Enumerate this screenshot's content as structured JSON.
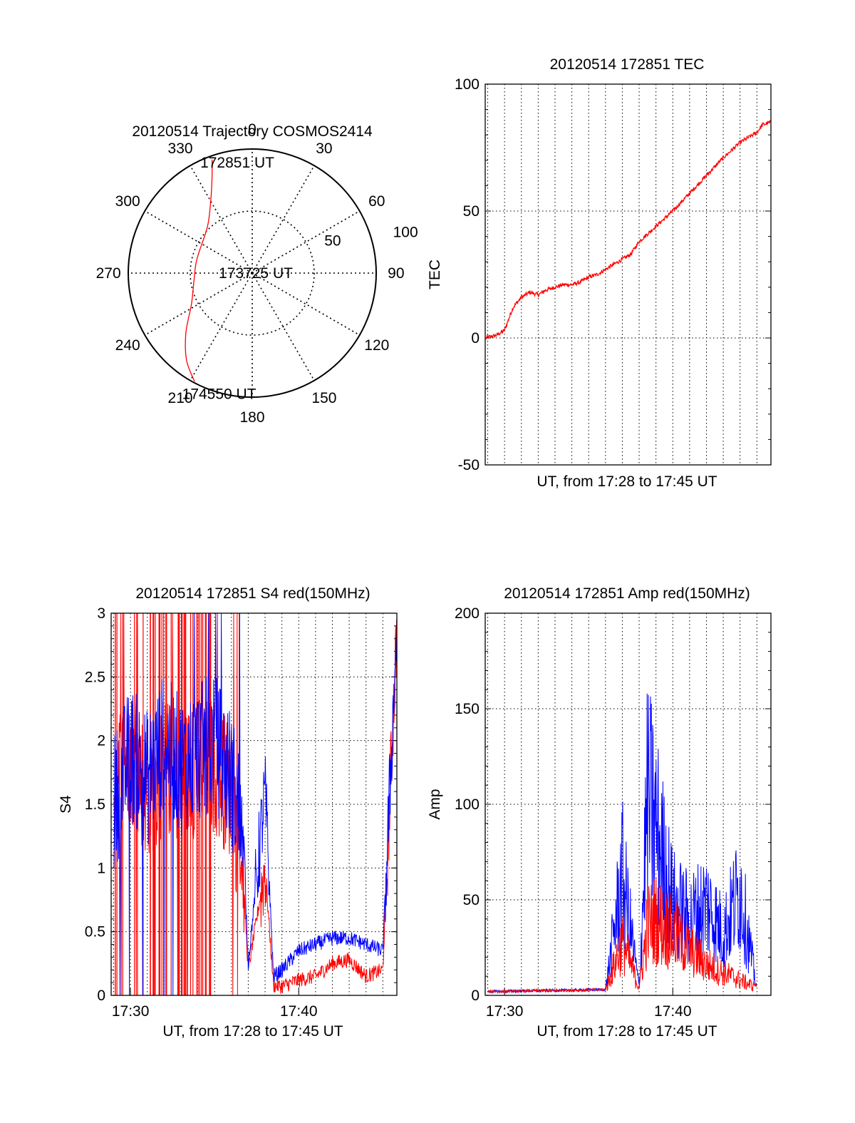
{
  "chart_data": [
    {
      "type": "polar-trajectory",
      "title": "20120514 Trajectory COSMOS2414",
      "azimuth_labels": [
        "0",
        "30",
        "60",
        "90",
        "120",
        "150",
        "180",
        "210",
        "240",
        "270",
        "300",
        "330"
      ],
      "azimuth_ticks": [
        0,
        30,
        60,
        90,
        120,
        150,
        180,
        210,
        240,
        270,
        300,
        330
      ],
      "ring_labels": [
        "50",
        "100"
      ],
      "rings": [
        50,
        100
      ],
      "trajectory": {
        "color": "#ff0000",
        "points": [
          [
            340.5,
            97
          ],
          [
            337,
            83
          ],
          [
            330,
            67
          ],
          [
            316,
            52
          ],
          [
            284,
            46
          ],
          [
            262,
            47.5
          ],
          [
            243,
            55
          ],
          [
            228,
            72
          ],
          [
            217,
            88
          ],
          [
            208,
            99
          ]
        ]
      },
      "point_labels": [
        {
          "text": "172851 UT",
          "az": 348,
          "r": 91
        },
        {
          "text": "173725 UT",
          "az": 271,
          "r": 4
        },
        {
          "text": "174550 UT",
          "az": 199,
          "r": 103
        }
      ]
    },
    {
      "type": "line",
      "title": "20120514 172851 TEC",
      "xlabel": "UT, from 17:28 to 17:45 UT",
      "ylabel": "TEC",
      "xlim": [
        "17:28:51",
        "17:45:50"
      ],
      "ylim": [
        -50,
        100
      ],
      "yticks": [
        -50,
        0,
        50,
        100
      ],
      "ytick_labels": [
        "-50",
        "0",
        "50",
        "100"
      ],
      "grid": true,
      "series": [
        {
          "color": "#ff0000",
          "x": [
            "17:28:51",
            "17:29:30",
            "17:30:00",
            "17:30:30",
            "17:31:00",
            "17:31:30",
            "17:32:00",
            "17:32:30",
            "17:33:00",
            "17:33:30",
            "17:34:00",
            "17:34:30",
            "17:35:00",
            "17:35:30",
            "17:36:00",
            "17:36:30",
            "17:37:00",
            "17:37:30",
            "17:38:00",
            "17:39:00",
            "17:40:00",
            "17:41:00",
            "17:42:00",
            "17:43:00",
            "17:44:00",
            "17:45:00",
            "17:45:20",
            "17:45:50"
          ],
          "values": [
            0,
            1,
            3,
            12,
            16,
            18,
            17,
            19,
            20,
            21,
            21,
            22,
            24,
            25,
            27,
            29,
            31,
            33,
            38,
            44,
            50,
            57,
            64,
            71,
            77,
            81,
            84,
            85
          ]
        }
      ]
    },
    {
      "type": "line",
      "title": "20120514 172851 S4 red(150MHz)",
      "xlabel": "UT, from 17:28 to 17:45 UT",
      "ylabel": "S4",
      "xlim": [
        "17:28:51",
        "17:45:50"
      ],
      "ylim": [
        0,
        3
      ],
      "yticks": [
        0,
        0.5,
        1,
        1.5,
        2,
        2.5,
        3
      ],
      "ytick_labels": [
        "0",
        "0.5",
        "1",
        "1.5",
        "2",
        "2.5",
        "3"
      ],
      "xtick_labels": [
        "17:30",
        "17:40"
      ],
      "grid": true,
      "series": [
        {
          "color": "#ff0000",
          "x": [
            "17:29",
            "17:30",
            "17:31",
            "17:32",
            "17:33",
            "17:34",
            "17:35",
            "17:36",
            "17:36:40",
            "17:37",
            "17:38",
            "17:38:30",
            "17:39",
            "17:40",
            "17:41",
            "17:42",
            "17:43",
            "17:44",
            "17:45",
            "17:45:50"
          ],
          "values": [
            1.7,
            1.9,
            1.6,
            1.8,
            1.7,
            1.8,
            1.8,
            1.6,
            1.0,
            0.2,
            1.0,
            0.08,
            0.07,
            0.12,
            0.15,
            0.25,
            0.28,
            0.15,
            0.2,
            2.9
          ]
        },
        {
          "color": "#0000ff",
          "x": [
            "17:29",
            "17:30",
            "17:31",
            "17:32",
            "17:33",
            "17:34",
            "17:35",
            "17:36",
            "17:36:40",
            "17:37",
            "17:38",
            "17:38:30",
            "17:39",
            "17:40",
            "17:41",
            "17:42",
            "17:43",
            "17:44",
            "17:45",
            "17:45:50"
          ],
          "values": [
            1.5,
            1.9,
            1.7,
            2.0,
            1.8,
            1.9,
            2.0,
            1.7,
            1.3,
            0.25,
            1.6,
            0.15,
            0.2,
            0.35,
            0.4,
            0.45,
            0.45,
            0.4,
            0.35,
            2.9
          ]
        }
      ]
    },
    {
      "type": "line",
      "title": "20120514 172851 Amp red(150MHz)",
      "xlabel": "UT, from 17:28 to 17:45 UT",
      "ylabel": "Amp",
      "xlim": [
        "17:28:51",
        "17:45:50"
      ],
      "ylim": [
        0,
        200
      ],
      "yticks": [
        0,
        50,
        100,
        150,
        200
      ],
      "ytick_labels": [
        "0",
        "50",
        "100",
        "150",
        "200"
      ],
      "xtick_labels": [
        "17:30",
        "17:40"
      ],
      "grid": true,
      "series": [
        {
          "color": "#ff0000",
          "x": [
            "17:29",
            "17:36",
            "17:37",
            "17:38",
            "17:38:30",
            "17:39",
            "17:40",
            "17:41",
            "17:42",
            "17:43",
            "17:44",
            "17:45"
          ],
          "values": [
            2,
            3,
            35,
            5,
            45,
            50,
            40,
            30,
            20,
            15,
            10,
            5
          ]
        },
        {
          "color": "#0000ff",
          "x": [
            "17:29",
            "17:36",
            "17:37",
            "17:38",
            "17:38:30",
            "17:39",
            "17:40",
            "17:41",
            "17:42",
            "17:43",
            "17:44",
            "17:45"
          ],
          "values": [
            2,
            3,
            80,
            5,
            130,
            110,
            60,
            50,
            60,
            40,
            70,
            4
          ]
        }
      ]
    }
  ]
}
